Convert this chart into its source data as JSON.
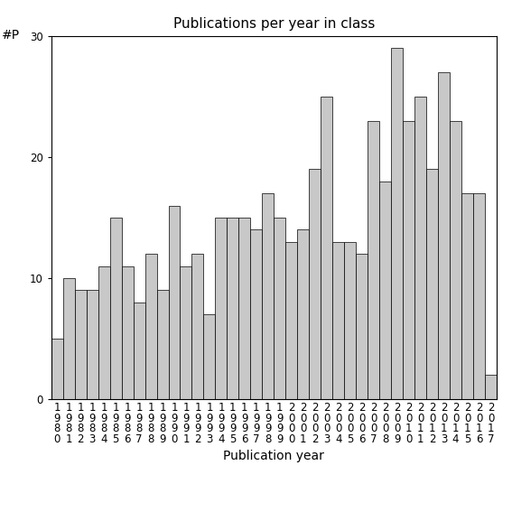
{
  "title": "Publications per year in class",
  "xlabel": "Publication year",
  "ylabel": "#P",
  "years": [
    1980,
    1981,
    1982,
    1983,
    1984,
    1985,
    1986,
    1987,
    1988,
    1989,
    1990,
    1991,
    1992,
    1993,
    1994,
    1995,
    1996,
    1997,
    1998,
    1999,
    2000,
    2001,
    2002,
    2003,
    2004,
    2005,
    2006,
    2007,
    2008,
    2009,
    2010,
    2011,
    2012,
    2013,
    2014,
    2015,
    2016,
    2017
  ],
  "values": [
    5,
    10,
    9,
    9,
    11,
    15,
    11,
    8,
    12,
    9,
    16,
    11,
    12,
    7,
    15,
    15,
    15,
    14,
    17,
    15,
    13,
    14,
    19,
    25,
    13,
    13,
    12,
    23,
    18,
    29,
    23,
    25,
    19,
    27,
    23,
    17,
    17,
    2
  ],
  "bar_color": "#c8c8c8",
  "bar_edge_color": "#000000",
  "ylim": [
    0,
    30
  ],
  "yticks": [
    0,
    10,
    20,
    30
  ],
  "background_color": "#ffffff",
  "title_fontsize": 11,
  "axis_label_fontsize": 10,
  "tick_fontsize": 8.5
}
